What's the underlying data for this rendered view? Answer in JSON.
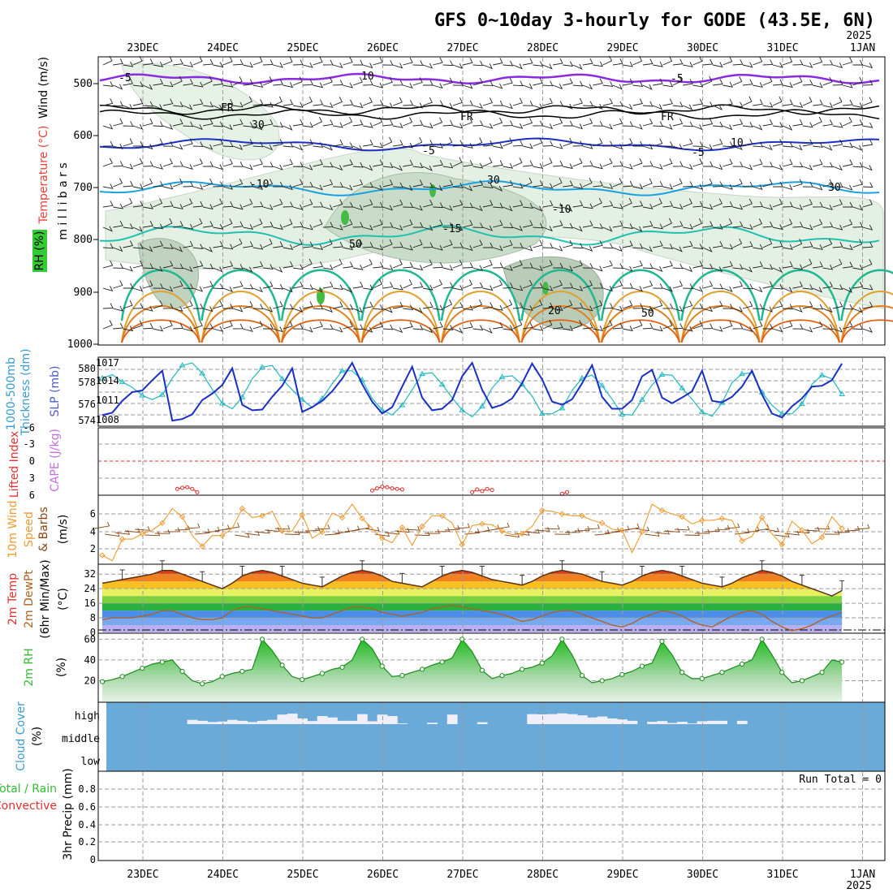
{
  "title": "GFS 0~10day 3-hourly for GODE (43.5E, 6N)",
  "year_top": "2025",
  "year_bottom": "2025",
  "dates": [
    "23DEC",
    "24DEC",
    "25DEC",
    "26DEC",
    "27DEC",
    "28DEC",
    "29DEC",
    "30DEC",
    "31DEC",
    "1JAN"
  ],
  "colors": {
    "rh": "#33cc33",
    "temp": "#e8413a",
    "wind": "#000000",
    "slp_purple": "#8a2be2",
    "thick": "#1a2fc4",
    "slp": "#20b8c0",
    "li": "#e03030",
    "cape": "#c070e0",
    "wspd": "#f09a30",
    "barbs": "#8b4513",
    "dew": "#b06020",
    "rh2m": "#33bb33",
    "cloud": "#6aaad8",
    "cloud_label": "#3a9bd0",
    "precip_total": "#33bb33",
    "precip_conv": "#e03030"
  },
  "panels": {
    "upper": {
      "label_wind": "Wind (m/s)",
      "label_temp": "Temperature (°C)",
      "label_rh": "RH (%)",
      "label_mb": "m i l l i b a r s",
      "yticks": [
        "500",
        "600",
        "700",
        "800",
        "900",
        "1000"
      ],
      "contours": [
        "-5",
        "FR",
        "FR",
        "FR",
        "-5",
        "-5",
        "-10",
        "-10",
        "-15",
        "-5",
        "10",
        "50",
        "30",
        "30",
        "50",
        "10",
        "30",
        "20"
      ]
    },
    "thickness": {
      "label_thick": "Thickness (dm)",
      "label_slp": "SLP (mb)",
      "label_1000": "1000-500mb",
      "yticks_left": [
        "580",
        "578",
        "576",
        "574"
      ],
      "yticks_right": [
        "1017",
        "1014",
        "1011",
        "1008"
      ]
    },
    "lifted": {
      "label_li": "Lifted Index",
      "label_cape": "CAPE (J/kg)",
      "yticks": [
        "-6",
        "-3",
        "0",
        "3",
        "6"
      ]
    },
    "wind10": {
      "label_a": "10m Wind",
      "label_b": "Speed",
      "label_c": "& Barbs",
      "label_unit": "(m/s)",
      "yticks": [
        "6",
        "4",
        "2"
      ]
    },
    "temp2m": {
      "label_a": "2m Temp",
      "label_b": "2m DewPt",
      "label_c": "(6hr Min/Max)",
      "label_unit": "(°C)",
      "yticks": [
        "32",
        "24",
        "16",
        "8",
        "0"
      ]
    },
    "rh2m": {
      "label": "2m RH",
      "label_unit": "(%)",
      "yticks": [
        "60",
        "40",
        "20"
      ]
    },
    "cloud": {
      "label": "Cloud Cover",
      "label_unit": "(%)",
      "levels": [
        "high",
        "middle",
        "low"
      ]
    },
    "precip": {
      "label_total": "Total / Rain",
      "label_conv": "Convective",
      "label_unit": "3hr Precip (mm)",
      "yticks": [
        "0.8",
        "0.6",
        "0.4",
        "0.2",
        "0"
      ],
      "run_total": "Run Total = 0"
    }
  },
  "chart_data": [
    {
      "type": "line",
      "name": "thickness",
      "ylim": [
        573,
        581.5
      ],
      "values": [
        574.3,
        574.6,
        576.1,
        577.2,
        577.4,
        578.7,
        579.9,
        573.6,
        573.8,
        574.4,
        576.2,
        577.0,
        578.1,
        580.2,
        575.6,
        574.9,
        575.0,
        576.6,
        578.0,
        580.2,
        574.7,
        575.3,
        576.1,
        577.3,
        578.9,
        580.9,
        578.2,
        576.0,
        574.5,
        575.3,
        577.9,
        580.4,
        576.5,
        574.9,
        575.1,
        576.2,
        579.2,
        580.9,
        577.5,
        575.2,
        575.6,
        576.4,
        578.3,
        580.8,
        578.8,
        576.0,
        575.6,
        576.3,
        578.3,
        580.6,
        576.6,
        575.1,
        575.1,
        576.2,
        579.2,
        580.0,
        576.5,
        575.8,
        576.5,
        577.3,
        579.9,
        576.1,
        575.9,
        576.6,
        577.9,
        579.9,
        576.9,
        574.5,
        574.0,
        575.4,
        576.4,
        577.9,
        578.0,
        578.7,
        580.8
      ]
    },
    {
      "type": "line",
      "name": "slp",
      "ylim": [
        1006.5,
        1017.5
      ],
      "values": [
        1014.2,
        1014.8,
        1013.6,
        1012.7,
        1011.4,
        1010.7,
        1011.5,
        1014.2,
        1016.3,
        1016.7,
        1015.0,
        1012.4,
        1010.1,
        1009.2,
        1011.1,
        1014.1,
        1016.0,
        1016.3,
        1014.1,
        1012.3,
        1010.7,
        1009.4,
        1010.9,
        1013.3,
        1015.4,
        1015.4,
        1013.9,
        1010.9,
        1009.0,
        1008.2,
        1009.8,
        1012.3,
        1014.9,
        1015.1,
        1013.2,
        1011.0,
        1009.0,
        1007.9,
        1009.6,
        1012.6,
        1014.4,
        1014.6,
        1013.2,
        1011.3,
        1008.4,
        1008.4,
        1009.3,
        1012.2,
        1014.2,
        1014.7,
        1013.0,
        1010.8,
        1008.3,
        1008.2,
        1010.7,
        1013.1,
        1014.8,
        1014.7,
        1012.6,
        1010.8,
        1008.7,
        1008.0,
        1010.2,
        1013.5,
        1014.9,
        1015.1,
        1011.9,
        1009.8,
        1008.4,
        1008.4,
        1010.0,
        1013.2,
        1014.7,
        1014.1,
        1011.6
      ]
    },
    {
      "type": "line",
      "name": "lifted_index",
      "ylim": [
        6,
        -6
      ],
      "x": [
        [
          7.5,
          8,
          8.5,
          9,
          9.5
        ],
        [
          27,
          27.5,
          28,
          28.5,
          29,
          29.5,
          30
        ],
        [
          37,
          37.5,
          38,
          38.5,
          39
        ],
        [
          46,
          46.5
        ]
      ],
      "segments": [
        [
          5.0,
          4.8,
          4.7,
          5.0,
          5.6
        ],
        [
          5.3,
          4.9,
          4.6,
          4.7,
          4.9,
          5.0,
          5.1
        ],
        [
          5.6,
          5.1,
          5.4,
          5.0,
          5.2
        ],
        [
          5.9,
          5.6
        ]
      ]
    },
    {
      "type": "line",
      "name": "wind_speed_10m",
      "ylim": [
        0.5,
        8
      ],
      "values": [
        1.4,
        0.8,
        3.2,
        3.2,
        3.8,
        4.2,
        5.0,
        6.6,
        5.7,
        3.6,
        2.4,
        3.6,
        3.6,
        4.4,
        6.6,
        5.6,
        5.8,
        6.3,
        4.1,
        4.1,
        5.9,
        3.3,
        4.0,
        6.1,
        5.6,
        7.1,
        5.5,
        4.4,
        3.3,
        2.8,
        4.5,
        2.5,
        4.6,
        5.8,
        5.8,
        5.0,
        2.6,
        4.7,
        4.9,
        4.8,
        4.1,
        3.7,
        3.8,
        4.6,
        6.4,
        6.3,
        6.0,
        5.8,
        5.8,
        5.3,
        5.0,
        4.3,
        4.2,
        1.7,
        4.0,
        7.1,
        6.4,
        6.0,
        5.7,
        4.9,
        5.3,
        5.3,
        5.5,
        5.3,
        3.0,
        3.5,
        5.6,
        3.8,
        2.6,
        5.2,
        4.2,
        2.7,
        3.4,
        5.7,
        4.4
      ]
    },
    {
      "type": "line",
      "name": "temp_2m",
      "ylim": [
        0,
        37
      ],
      "values": [
        27,
        28,
        29,
        30,
        31,
        32,
        34,
        34,
        32,
        30,
        28,
        26,
        24,
        27,
        31,
        33,
        34,
        33,
        31,
        29,
        27,
        26,
        25,
        28,
        31,
        33,
        34,
        33,
        31,
        28,
        27,
        26,
        25,
        28,
        31,
        33,
        34,
        33,
        31,
        29,
        28,
        27,
        26,
        28,
        31,
        33,
        34,
        33,
        32,
        30,
        28,
        27,
        26,
        28,
        31,
        33,
        34,
        33,
        31,
        29,
        27,
        26,
        25,
        27,
        30,
        32,
        34,
        33,
        31,
        28,
        26,
        24,
        22,
        20,
        23
      ]
    },
    {
      "type": "line",
      "name": "dewpoint_2m",
      "ylim": [
        0,
        37
      ],
      "values": [
        7,
        8,
        8,
        8,
        9,
        10,
        12,
        12,
        10,
        8,
        7,
        7,
        8,
        12,
        14,
        14,
        13,
        12,
        11,
        10,
        9,
        8,
        8,
        10,
        12,
        14,
        14,
        13,
        11,
        10,
        9,
        10,
        11,
        13,
        14,
        15,
        14,
        13,
        12,
        11,
        10,
        8,
        6,
        7,
        9,
        11,
        12,
        12,
        10,
        8,
        6,
        4,
        3,
        5,
        8,
        10,
        12,
        11,
        9,
        6,
        4,
        3,
        6,
        9,
        11,
        12,
        10,
        6,
        3,
        1,
        2,
        4,
        7,
        9,
        11
      ]
    },
    {
      "type": "area",
      "name": "rh_2m",
      "ylim": [
        0,
        65
      ],
      "values": [
        19,
        21,
        24,
        28,
        32,
        36,
        38,
        40,
        29,
        20,
        17,
        19,
        24,
        27,
        29,
        31,
        60,
        49,
        35,
        24,
        21,
        24,
        27,
        31,
        33,
        40,
        60,
        51,
        34,
        24,
        25,
        28,
        31,
        35,
        38,
        42,
        60,
        48,
        30,
        22,
        25,
        27,
        31,
        33,
        37,
        44,
        60,
        45,
        25,
        18,
        20,
        22,
        26,
        29,
        34,
        37,
        58,
        45,
        28,
        22,
        22,
        25,
        28,
        32,
        36,
        40,
        60,
        45,
        28,
        18,
        20,
        24,
        28,
        40,
        38
      ]
    },
    {
      "type": "bar",
      "name": "high_cloud_cover",
      "ylim": [
        0,
        100
      ],
      "values": [
        0,
        0,
        0,
        0,
        0,
        0,
        0,
        0,
        0,
        18,
        14,
        9,
        11,
        18,
        14,
        9,
        14,
        18,
        40,
        44,
        24,
        13,
        34,
        28,
        14,
        14,
        42,
        12,
        40,
        34,
        3,
        0,
        0,
        6,
        0,
        40,
        0,
        0,
        8,
        0,
        0,
        0,
        0,
        42,
        41,
        42,
        45,
        42,
        37,
        28,
        32,
        24,
        20,
        14,
        0,
        10,
        13,
        5,
        10,
        3,
        12,
        14,
        14,
        0,
        14,
        0,
        0,
        0,
        0,
        0,
        0,
        0,
        0,
        0,
        0
      ]
    },
    {
      "type": "bar",
      "name": "precip_3hr",
      "ylim": [
        0,
        1
      ],
      "values": []
    }
  ]
}
